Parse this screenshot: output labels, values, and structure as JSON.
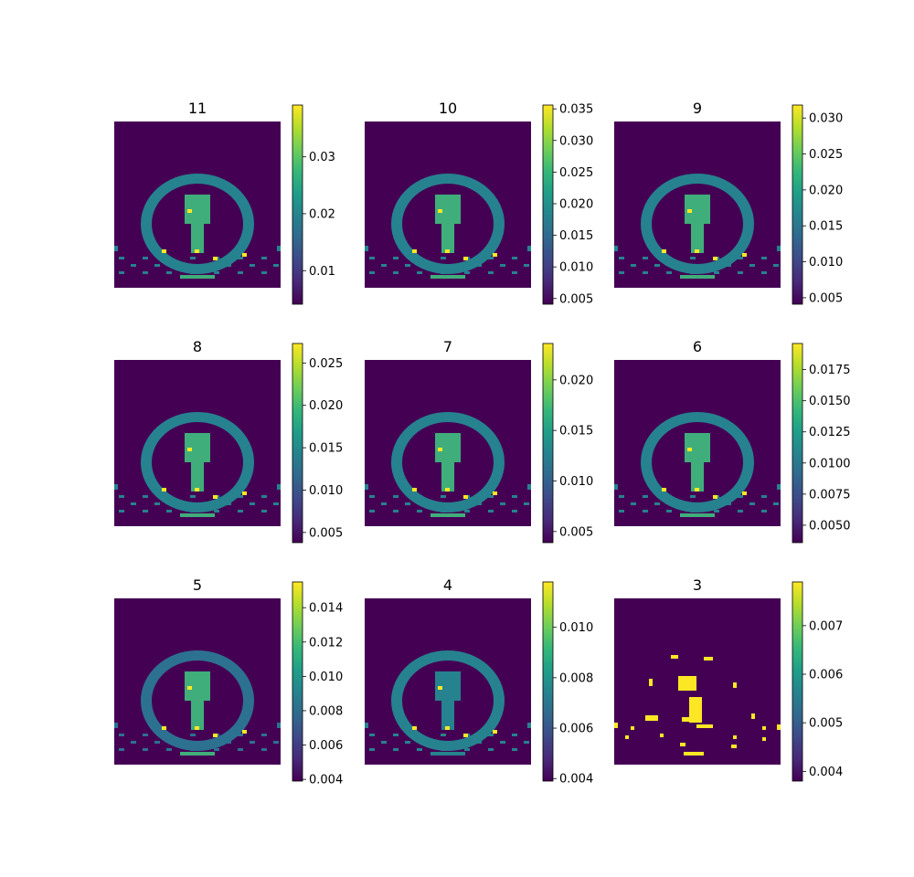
{
  "chart_data": {
    "type": "heatmap",
    "colormap": "viridis",
    "layout": "3x3 grid of images, each with its own colorbar",
    "axes_visible": false,
    "panels": [
      {
        "title": "11",
        "vmin": 0.0041,
        "vmax": 0.0391,
        "colorbar_ticks": [
          0.01,
          0.02,
          0.03
        ],
        "colorbar_tick_labels": [
          "0.01",
          "0.02",
          "0.03"
        ]
      },
      {
        "title": "10",
        "vmin": 0.0041,
        "vmax": 0.0356,
        "colorbar_ticks": [
          0.005,
          0.01,
          0.015,
          0.02,
          0.025,
          0.03,
          0.035
        ],
        "colorbar_tick_labels": [
          "0.005",
          "0.010",
          "0.015",
          "0.020",
          "0.025",
          "0.030",
          "0.035"
        ]
      },
      {
        "title": "9",
        "vmin": 0.0041,
        "vmax": 0.0318,
        "colorbar_ticks": [
          0.005,
          0.01,
          0.015,
          0.02,
          0.025,
          0.03
        ],
        "colorbar_tick_labels": [
          "0.005",
          "0.010",
          "0.015",
          "0.020",
          "0.025",
          "0.030"
        ]
      },
      {
        "title": "8",
        "vmin": 0.0038,
        "vmax": 0.0273,
        "colorbar_ticks": [
          0.005,
          0.01,
          0.015,
          0.02,
          0.025
        ],
        "colorbar_tick_labels": [
          "0.005",
          "0.010",
          "0.015",
          "0.020",
          "0.025"
        ]
      },
      {
        "title": "7",
        "vmin": 0.0039,
        "vmax": 0.0236,
        "colorbar_ticks": [
          0.005,
          0.01,
          0.015,
          0.02
        ],
        "colorbar_tick_labels": [
          "0.005",
          "0.010",
          "0.015",
          "0.020"
        ]
      },
      {
        "title": "6",
        "vmin": 0.0036,
        "vmax": 0.0196,
        "colorbar_ticks": [
          0.005,
          0.0075,
          0.01,
          0.0125,
          0.015,
          0.0175
        ],
        "colorbar_tick_labels": [
          "0.0050",
          "0.0075",
          "0.0100",
          "0.0125",
          "0.0150",
          "0.0175"
        ]
      },
      {
        "title": "5",
        "vmin": 0.0039,
        "vmax": 0.0155,
        "colorbar_ticks": [
          0.004,
          0.006,
          0.008,
          0.01,
          0.012,
          0.014
        ],
        "colorbar_tick_labels": [
          "0.004",
          "0.006",
          "0.008",
          "0.010",
          "0.012",
          "0.014"
        ]
      },
      {
        "title": "4",
        "vmin": 0.0039,
        "vmax": 0.0118,
        "colorbar_ticks": [
          0.004,
          0.006,
          0.008,
          0.01
        ],
        "colorbar_tick_labels": [
          "0.004",
          "0.006",
          "0.008",
          "0.010"
        ]
      },
      {
        "title": "3",
        "vmin": 0.0038,
        "vmax": 0.0079,
        "colorbar_ticks": [
          0.004,
          0.005,
          0.006,
          0.007
        ],
        "colorbar_tick_labels": [
          "0.004",
          "0.005",
          "0.006",
          "0.007"
        ]
      }
    ]
  }
}
